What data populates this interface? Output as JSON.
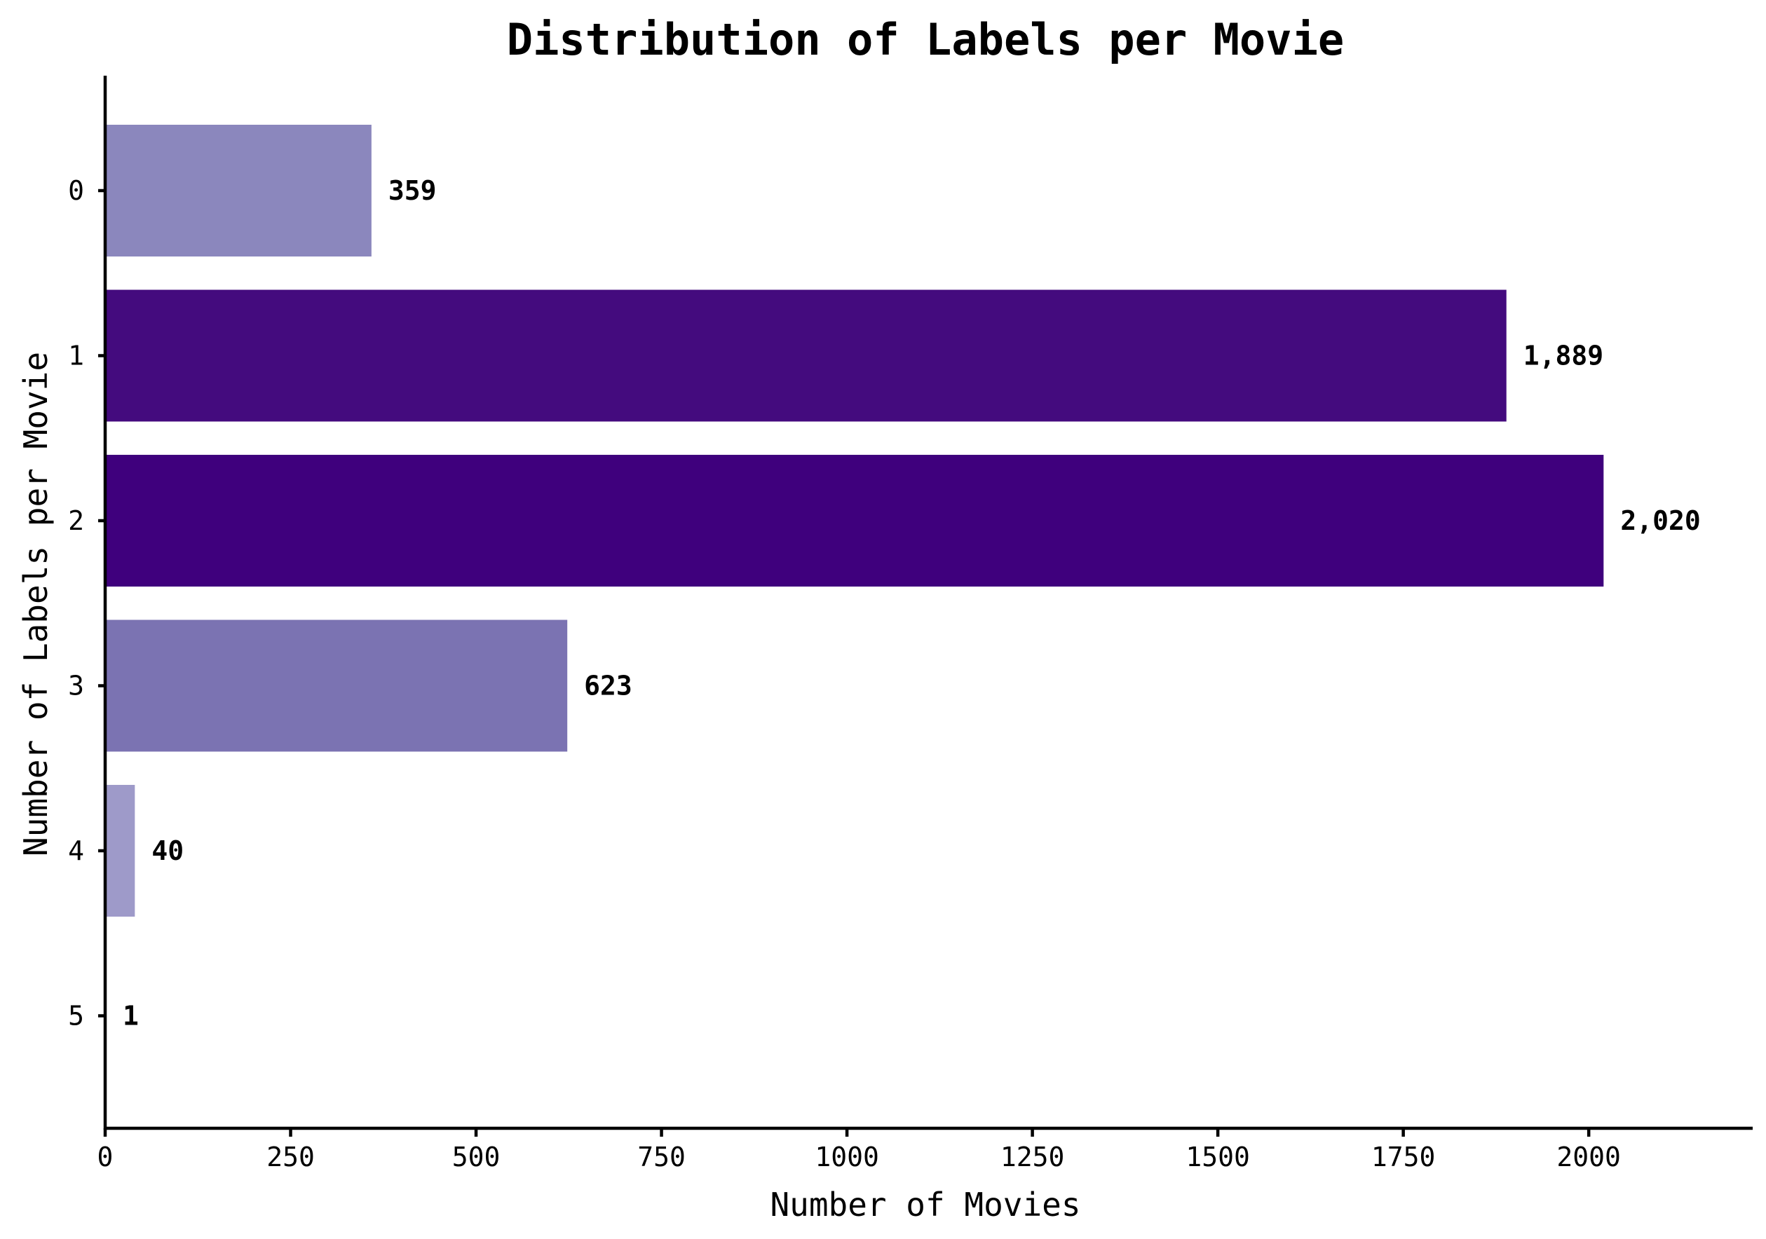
{
  "chart_data": {
    "type": "bar",
    "orientation": "horizontal",
    "title": "Distribution of Labels per Movie",
    "xlabel": "Number of Movies",
    "ylabel": "Number of Labels per Movie",
    "categories": [
      "0",
      "1",
      "2",
      "3",
      "4",
      "5"
    ],
    "values": [
      359,
      1889,
      2020,
      623,
      40,
      1
    ],
    "value_labels": [
      "359",
      "1,889",
      "2,020",
      "623",
      "40",
      "1"
    ],
    "bar_colors": [
      "#8b87bd",
      "#440b7e",
      "#3f007d",
      "#7b73b2",
      "#9e9ac9",
      "#fcfbfd"
    ],
    "xlim": [
      0,
      2221
    ],
    "xticks": [
      0,
      250,
      500,
      750,
      1000,
      1250,
      1500,
      1750,
      2000
    ],
    "xtick_labels": [
      "0",
      "250",
      "500",
      "750",
      "1000",
      "1250",
      "1500",
      "1750",
      "2000"
    ],
    "grid": false,
    "legend": "none"
  }
}
